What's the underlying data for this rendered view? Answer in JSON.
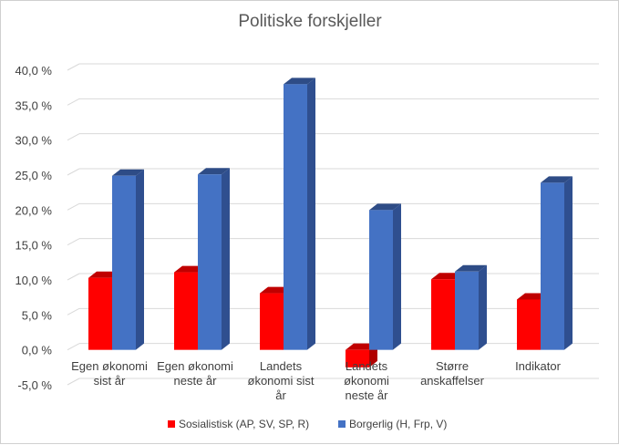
{
  "chart_data": {
    "type": "bar",
    "title": "Politiske forskjeller",
    "xlabel": "",
    "ylabel": "",
    "categories": [
      [
        "Egen økonomi",
        "sist år"
      ],
      [
        "Egen økonomi",
        "neste år"
      ],
      [
        "Landets",
        "økonomi sist",
        "år"
      ],
      [
        "Landets",
        "økonomi",
        "neste år"
      ],
      [
        "Større",
        "anskaffelser"
      ],
      [
        "Indikator"
      ]
    ],
    "series": [
      {
        "name": "Sosialistisk (AP, SV, SP, R)",
        "color": "#ff0000",
        "side_color": "#b00000",
        "top_color": "#c00000",
        "values": [
          10.3,
          11.1,
          8.1,
          -2.5,
          10.1,
          7.2
        ]
      },
      {
        "name": "Borgerlig (H, Frp, V)",
        "color": "#4472c4",
        "side_color": "#2f4f8f",
        "top_color": "#2e4c86",
        "values": [
          24.9,
          25.1,
          38.0,
          20.0,
          11.2,
          23.9
        ]
      }
    ],
    "ylim": [
      -5,
      40
    ],
    "yticks": [
      -5,
      0,
      5,
      10,
      15,
      20,
      25,
      30,
      35,
      40
    ],
    "ytick_labels": [
      "-5,0 %",
      "0,0 %",
      "5,0 %",
      "10,0 %",
      "15,0 %",
      "20,0 %",
      "25,0 %",
      "30,0 %",
      "35,0 %",
      "40,0 %"
    ],
    "grid": true,
    "legend_position": "bottom"
  }
}
